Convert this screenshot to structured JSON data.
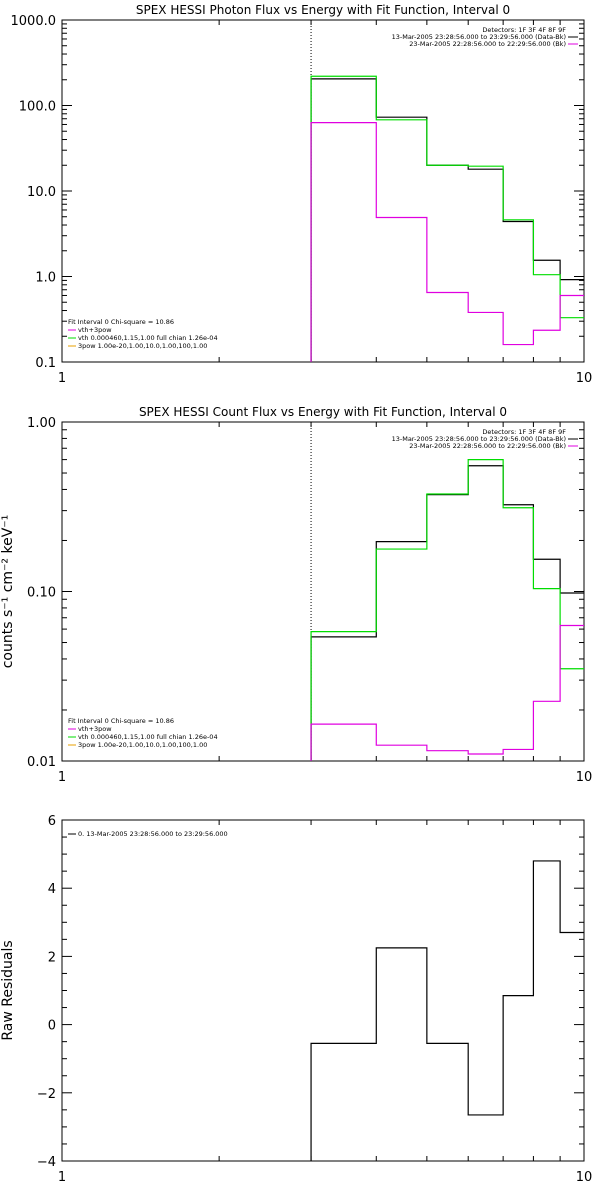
{
  "chart_data": [
    {
      "type": "line",
      "title": "SPEX HESSI Photon Flux vs Energy with Fit Function, Interval 0",
      "xlabel": "",
      "ylabel": "",
      "xscale": "log",
      "yscale": "log",
      "xlim": [
        1,
        10
      ],
      "ylim": [
        0.1,
        1000
      ],
      "xticks": [
        {
          "v": 1,
          "label": "1"
        },
        {
          "v": 10,
          "label": "10"
        }
      ],
      "yticks": [
        {
          "v": 0.1,
          "label": "0.1"
        },
        {
          "v": 1,
          "label": "1.0"
        },
        {
          "v": 10,
          "label": "10.0"
        },
        {
          "v": 100,
          "label": "100.0"
        },
        {
          "v": 1000,
          "label": "1000.0"
        }
      ],
      "vline": 3.0,
      "bin_edges": [
        3.0,
        4.0,
        5.0,
        6.0,
        7.0,
        8.0,
        9.0,
        10.0
      ],
      "series": [
        {
          "name": "data",
          "color": "#000000",
          "values": [
            205,
            73,
            20,
            18,
            4.4,
            1.55,
            0.92
          ]
        },
        {
          "name": "vth+3pow",
          "color": "#00dd00",
          "values": [
            220,
            68,
            20,
            19.5,
            4.6,
            1.05,
            0.33
          ]
        },
        {
          "name": "bk",
          "color": "#e000e0",
          "values": [
            63,
            4.9,
            0.65,
            0.38,
            0.16,
            0.235,
            0.6
          ]
        }
      ],
      "info_lines": [
        {
          "text": "Detectors: 1F 3F 4F 8F 9F",
          "color": "#000000"
        },
        {
          "text": "13-Mar-2005 23:28:56.000 to 23:29:56.000 (Data-Bk)",
          "color": "#000000"
        },
        {
          "text": "23-Mar-2005 22:28:56.000 to 22:29:56.000 (Bk)",
          "color": "#e000e0"
        }
      ],
      "fit_lines": [
        {
          "text": "Fit Interval  0     Chi-square = 10.86",
          "color": "#000000"
        },
        {
          "text": "vth+3pow",
          "color": "#e000e0"
        },
        {
          "text": "vth 0.000460,1.15,1.00   full chian 1.26e-04",
          "color": "#00dd00"
        },
        {
          "text": "3pow 1.00e-20,1.00,10.0,1.00,100,1.00",
          "color": "#e8a000"
        }
      ]
    },
    {
      "type": "line",
      "title": "SPEX HESSI Count Flux vs Energy with Fit Function, Interval 0",
      "xlabel": "",
      "ylabel": "counts s⁻¹ cm⁻² keV⁻¹",
      "xscale": "log",
      "yscale": "log",
      "xlim": [
        1,
        10
      ],
      "ylim": [
        0.01,
        1
      ],
      "xticks": [
        {
          "v": 1,
          "label": "1"
        },
        {
          "v": 10,
          "label": "10"
        }
      ],
      "yticks": [
        {
          "v": 0.01,
          "label": "0.01"
        },
        {
          "v": 0.1,
          "label": "0.10"
        },
        {
          "v": 1,
          "label": "1.00"
        }
      ],
      "vline": 3.0,
      "bin_edges": [
        3.0,
        4.0,
        5.0,
        6.0,
        7.0,
        8.0,
        9.0,
        10.0
      ],
      "series": [
        {
          "name": "data",
          "color": "#000000",
          "values": [
            0.054,
            0.197,
            0.373,
            0.552,
            0.325,
            0.155,
            0.098
          ]
        },
        {
          "name": "vth+3pow",
          "color": "#00dd00",
          "values": [
            0.058,
            0.178,
            0.376,
            0.6,
            0.312,
            0.104,
            0.035
          ]
        },
        {
          "name": "bk",
          "color": "#e000e0",
          "values": [
            0.0165,
            0.0124,
            0.0115,
            0.011,
            0.0117,
            0.0225,
            0.063
          ]
        }
      ],
      "info_lines": [
        {
          "text": "Detectors: 1F 3F 4F 8F 9F",
          "color": "#000000"
        },
        {
          "text": "13-Mar-2005 23:28:56.000 to 23:29:56.000 (Data-Bk)",
          "color": "#000000"
        },
        {
          "text": "23-Mar-2005 22:28:56.000 to 22:29:56.000 (Bk)",
          "color": "#e000e0"
        }
      ],
      "fit_lines": [
        {
          "text": "Fit Interval  0     Chi-square = 10.86",
          "color": "#000000"
        },
        {
          "text": "vth+3pow",
          "color": "#e000e0"
        },
        {
          "text": "vth 0.000460,1.15,1.00   full chian 1.26e-04",
          "color": "#00dd00"
        },
        {
          "text": "3pow 1.00e-20,1.00,10.0,1.00,100,1.00",
          "color": "#e8a000"
        }
      ]
    },
    {
      "type": "line",
      "title": "",
      "xlabel": "",
      "ylabel": "Raw Residuals",
      "xscale": "log",
      "yscale": "linear",
      "xlim": [
        1,
        10
      ],
      "ylim": [
        -4,
        6
      ],
      "xticks": [
        {
          "v": 1,
          "label": "1"
        },
        {
          "v": 10,
          "label": "10"
        }
      ],
      "yticks": [
        {
          "v": -4,
          "label": "−4"
        },
        {
          "v": -2,
          "label": "−2"
        },
        {
          "v": 0,
          "label": "0"
        },
        {
          "v": 2,
          "label": "2"
        },
        {
          "v": 4,
          "label": "4"
        },
        {
          "v": 6,
          "label": "6"
        }
      ],
      "bin_edges": [
        3.0,
        4.0,
        5.0,
        6.0,
        7.0,
        8.0,
        9.0,
        10.0
      ],
      "series": [
        {
          "name": "residuals",
          "color": "#000000",
          "values": [
            -0.55,
            2.25,
            -0.55,
            -2.65,
            0.85,
            4.8,
            2.7
          ]
        }
      ],
      "legend_lines": [
        {
          "text": "0. 13-Mar-2005 23:28:56.000 to 23:29:56.000",
          "color": "#000000"
        }
      ]
    }
  ]
}
